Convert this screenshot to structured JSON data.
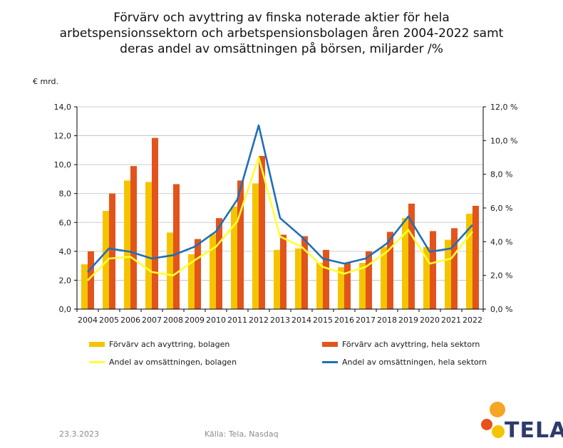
{
  "header": {
    "title_lines": [
      "Förvärv och avyttring av finska noterade aktier för hela",
      "arbetspensionssektorn och arbetspensionsbolagen åren 2004-2022 samt",
      "deras andel av omsättningen på börsen, miljarder /%"
    ],
    "y_unit": "€ mrd."
  },
  "chart_data": {
    "type": "bar",
    "categories": [
      "2004",
      "2005",
      "2006",
      "2007",
      "2008",
      "2009",
      "2010",
      "2011",
      "2012",
      "2013",
      "2014",
      "2015",
      "2016",
      "2017",
      "2018",
      "2019",
      "2020",
      "2021",
      "2022"
    ],
    "left_axis": {
      "ylim": [
        0,
        14
      ],
      "ticks": [
        "0,0",
        "2,0",
        "4,0",
        "6,0",
        "8,0",
        "10,0",
        "12,0",
        "14,0"
      ]
    },
    "right_axis": {
      "ylim": [
        0,
        12
      ],
      "ticks": [
        "0,0 %",
        "2,0 %",
        "4,0 %",
        "6,0 %",
        "8,0 %",
        "10,0 %",
        "12,0 %"
      ]
    },
    "grid": "horizontal",
    "legend_placement": "bottom",
    "series": [
      {
        "name": "Förvärv ach avyttring, bolagen",
        "kind": "bar",
        "axis": "left",
        "color": "#F5C400",
        "values": [
          3.1,
          6.8,
          8.9,
          8.8,
          5.3,
          3.8,
          5.2,
          7.1,
          8.7,
          4.1,
          4.2,
          3.2,
          2.9,
          3.2,
          4.3,
          6.3,
          4.3,
          4.8,
          6.6
        ]
      },
      {
        "name": "Förvärv ach avyttring, hela sektorn",
        "kind": "bar",
        "axis": "left",
        "color": "#E2541B",
        "values": [
          4.0,
          8.0,
          9.9,
          11.85,
          8.65,
          4.85,
          6.3,
          8.9,
          10.6,
          5.15,
          5.05,
          4.1,
          3.2,
          4.0,
          5.35,
          7.3,
          5.4,
          5.6,
          7.15
        ]
      },
      {
        "name": "Andel av omsättningen, bolagen",
        "kind": "line",
        "axis": "right",
        "color": "#FFFF33",
        "values": [
          1.7,
          3.0,
          3.1,
          2.2,
          2.0,
          2.9,
          3.7,
          5.2,
          9.0,
          4.3,
          3.7,
          2.5,
          2.1,
          2.5,
          3.4,
          4.7,
          2.7,
          3.0,
          4.6
        ]
      },
      {
        "name": "Andel av omsättningen, hela sektorn",
        "kind": "line",
        "axis": "right",
        "color": "#1F6FB5",
        "values": [
          2.2,
          3.6,
          3.4,
          3.0,
          3.2,
          3.7,
          4.6,
          6.5,
          10.9,
          5.4,
          4.3,
          3.0,
          2.7,
          3.0,
          3.9,
          5.5,
          3.4,
          3.6,
          5.0
        ]
      }
    ]
  },
  "footer": {
    "date": "23.3.2023",
    "source": "Källa: Tela, Nasdaq",
    "logo_text": "TELA"
  }
}
